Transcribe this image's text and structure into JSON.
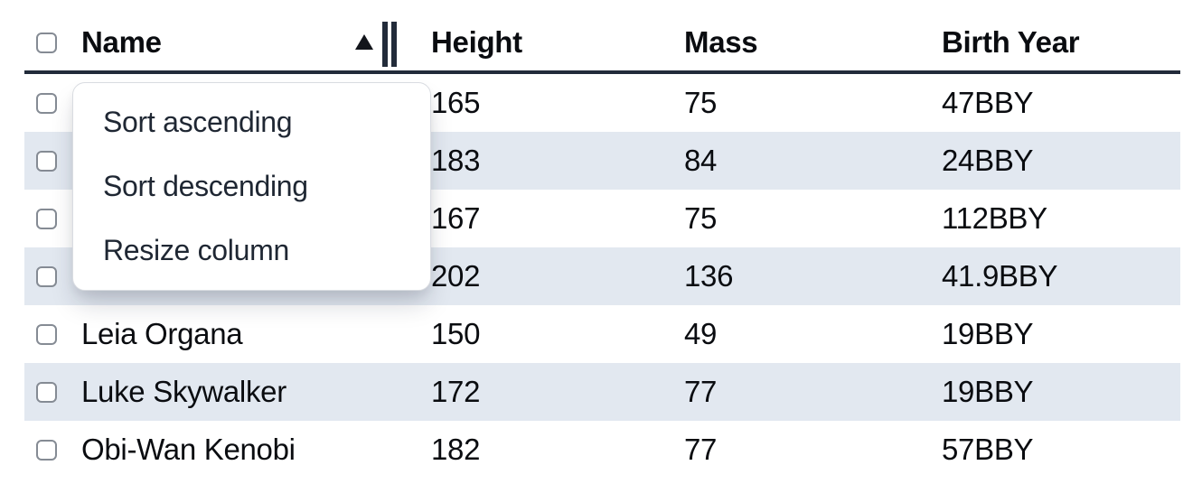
{
  "table": {
    "columns": [
      {
        "label": "Name",
        "sorted": "ascending"
      },
      {
        "label": "Height"
      },
      {
        "label": "Mass"
      },
      {
        "label": "Birth Year"
      }
    ],
    "rows": [
      {
        "name": "",
        "height": "165",
        "mass": "75",
        "birth_year": "47BBY"
      },
      {
        "name": "",
        "height": "183",
        "mass": "84",
        "birth_year": "24BBY"
      },
      {
        "name": "",
        "height": "167",
        "mass": "75",
        "birth_year": "112BBY"
      },
      {
        "name": "",
        "height": "202",
        "mass": "136",
        "birth_year": "41.9BBY"
      },
      {
        "name": "Leia Organa",
        "height": "150",
        "mass": "49",
        "birth_year": "19BBY"
      },
      {
        "name": "Luke Skywalker",
        "height": "172",
        "mass": "77",
        "birth_year": "19BBY"
      },
      {
        "name": "Obi-Wan Kenobi",
        "height": "182",
        "mass": "77",
        "birth_year": "57BBY"
      }
    ]
  },
  "context_menu": {
    "items": [
      "Sort ascending",
      "Sort descending",
      "Resize column"
    ]
  },
  "icons": {
    "sort_indicator": "ascending-triangle",
    "resize_handle": "double-bar"
  },
  "colors": {
    "row_stripe": "#e2e8f0",
    "header_border": "#222b3a",
    "cell_text": "#0a0c10",
    "menu_text": "#1f2733",
    "checkbox_border": "#858b94"
  }
}
